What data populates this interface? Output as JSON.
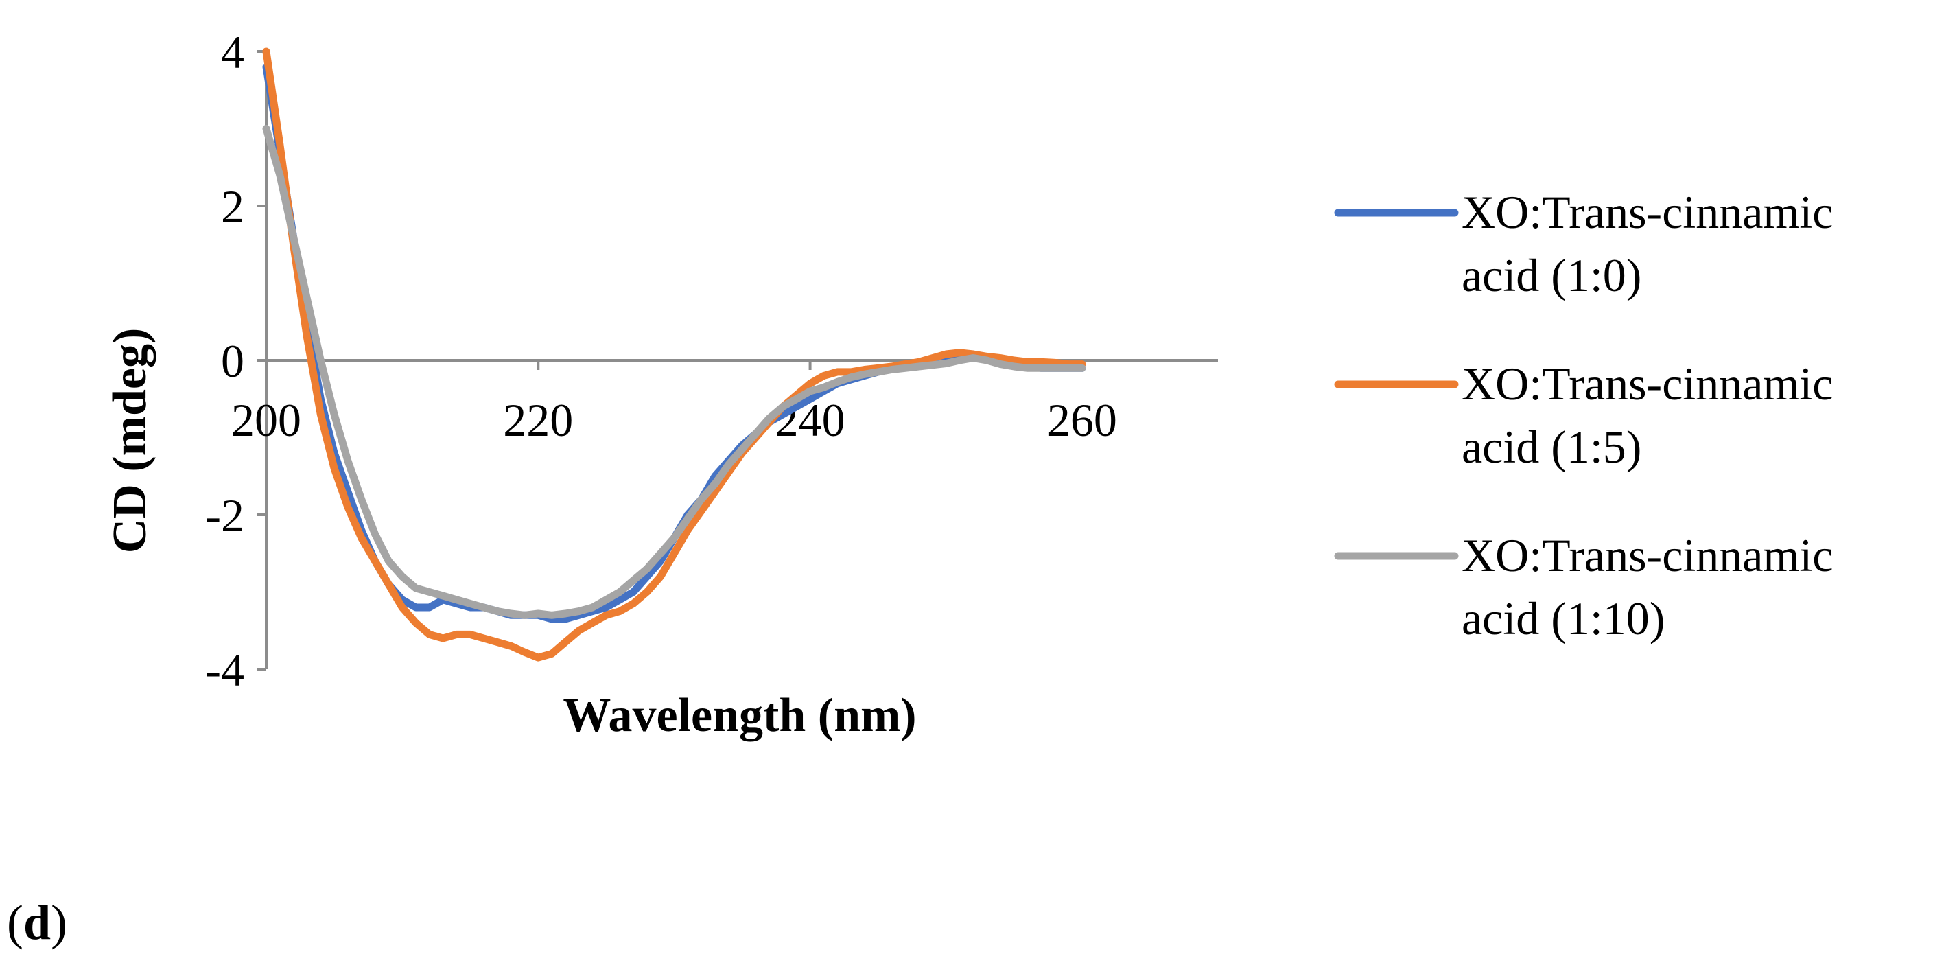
{
  "panel_label": {
    "open": "(",
    "letter": "d",
    "close": ")"
  },
  "chart_data": {
    "type": "line",
    "title": "",
    "xlabel": "Wavelength (nm)",
    "ylabel": "CD (mdeg)",
    "xlim": [
      200,
      270
    ],
    "ylim": [
      -4,
      4
    ],
    "x_ticks": [
      200,
      220,
      240,
      260
    ],
    "y_ticks": [
      4,
      2,
      0,
      -2,
      -4
    ],
    "x_tick_labels": [
      "200",
      "220",
      "240",
      "260"
    ],
    "y_tick_labels": [
      "4",
      "2",
      "0",
      "-2",
      "-4"
    ],
    "legend_position": "right",
    "series": [
      {
        "name": "XO:Trans-cinnamic acid (1:0)",
        "legend_lines": [
          "XO:Trans-cinnamic",
          "acid (1:0)"
        ],
        "color": "#4472C4",
        "points": [
          [
            200,
            3.8
          ],
          [
            201,
            2.7
          ],
          [
            202,
            1.6
          ],
          [
            203,
            0.5
          ],
          [
            204,
            -0.5
          ],
          [
            205,
            -1.2
          ],
          [
            206,
            -1.7
          ],
          [
            207,
            -2.2
          ],
          [
            208,
            -2.6
          ],
          [
            209,
            -2.9
          ],
          [
            210,
            -3.1
          ],
          [
            211,
            -3.2
          ],
          [
            212,
            -3.2
          ],
          [
            213,
            -3.1
          ],
          [
            214,
            -3.15
          ],
          [
            215,
            -3.2
          ],
          [
            216,
            -3.2
          ],
          [
            217,
            -3.25
          ],
          [
            218,
            -3.3
          ],
          [
            219,
            -3.3
          ],
          [
            220,
            -3.3
          ],
          [
            221,
            -3.35
          ],
          [
            222,
            -3.35
          ],
          [
            223,
            -3.3
          ],
          [
            224,
            -3.25
          ],
          [
            225,
            -3.2
          ],
          [
            226,
            -3.1
          ],
          [
            227,
            -3.0
          ],
          [
            228,
            -2.8
          ],
          [
            229,
            -2.6
          ],
          [
            230,
            -2.3
          ],
          [
            231,
            -2.0
          ],
          [
            232,
            -1.8
          ],
          [
            233,
            -1.5
          ],
          [
            234,
            -1.3
          ],
          [
            235,
            -1.1
          ],
          [
            236,
            -0.95
          ],
          [
            237,
            -0.8
          ],
          [
            238,
            -0.7
          ],
          [
            239,
            -0.6
          ],
          [
            240,
            -0.5
          ],
          [
            241,
            -0.4
          ],
          [
            242,
            -0.3
          ],
          [
            243,
            -0.25
          ],
          [
            244,
            -0.2
          ],
          [
            245,
            -0.15
          ],
          [
            246,
            -0.1
          ],
          [
            247,
            -0.08
          ],
          [
            248,
            -0.05
          ],
          [
            249,
            -0.03
          ],
          [
            250,
            0.0
          ],
          [
            251,
            0.02
          ],
          [
            252,
            0.03
          ],
          [
            253,
            0.03
          ],
          [
            254,
            0.0
          ],
          [
            255,
            -0.05
          ],
          [
            256,
            -0.08
          ],
          [
            257,
            -0.1
          ],
          [
            258,
            -0.1
          ],
          [
            259,
            -0.1
          ],
          [
            260,
            -0.1
          ]
        ]
      },
      {
        "name": "XO:Trans-cinnamic acid (1:5)",
        "legend_lines": [
          "XO:Trans-cinnamic",
          "acid (1:5)"
        ],
        "color": "#ED7D31",
        "points": [
          [
            200,
            4.0
          ],
          [
            201,
            2.8
          ],
          [
            202,
            1.5
          ],
          [
            203,
            0.3
          ],
          [
            204,
            -0.7
          ],
          [
            205,
            -1.4
          ],
          [
            206,
            -1.9
          ],
          [
            207,
            -2.3
          ],
          [
            208,
            -2.6
          ],
          [
            209,
            -2.9
          ],
          [
            210,
            -3.2
          ],
          [
            211,
            -3.4
          ],
          [
            212,
            -3.55
          ],
          [
            213,
            -3.6
          ],
          [
            214,
            -3.55
          ],
          [
            215,
            -3.55
          ],
          [
            216,
            -3.6
          ],
          [
            217,
            -3.65
          ],
          [
            218,
            -3.7
          ],
          [
            219,
            -3.78
          ],
          [
            220,
            -3.85
          ],
          [
            221,
            -3.8
          ],
          [
            222,
            -3.65
          ],
          [
            223,
            -3.5
          ],
          [
            224,
            -3.4
          ],
          [
            225,
            -3.3
          ],
          [
            226,
            -3.25
          ],
          [
            227,
            -3.15
          ],
          [
            228,
            -3.0
          ],
          [
            229,
            -2.8
          ],
          [
            230,
            -2.5
          ],
          [
            231,
            -2.2
          ],
          [
            232,
            -1.95
          ],
          [
            233,
            -1.7
          ],
          [
            234,
            -1.45
          ],
          [
            235,
            -1.2
          ],
          [
            236,
            -1.0
          ],
          [
            237,
            -0.8
          ],
          [
            238,
            -0.6
          ],
          [
            239,
            -0.45
          ],
          [
            240,
            -0.3
          ],
          [
            241,
            -0.2
          ],
          [
            242,
            -0.15
          ],
          [
            243,
            -0.15
          ],
          [
            244,
            -0.12
          ],
          [
            245,
            -0.1
          ],
          [
            246,
            -0.08
          ],
          [
            247,
            -0.05
          ],
          [
            248,
            -0.02
          ],
          [
            249,
            0.03
          ],
          [
            250,
            0.08
          ],
          [
            251,
            0.1
          ],
          [
            252,
            0.08
          ],
          [
            253,
            0.05
          ],
          [
            254,
            0.03
          ],
          [
            255,
            0.0
          ],
          [
            256,
            -0.02
          ],
          [
            257,
            -0.02
          ],
          [
            258,
            -0.03
          ],
          [
            259,
            -0.05
          ],
          [
            260,
            -0.05
          ]
        ]
      },
      {
        "name": "XO:Trans-cinnamic acid (1:10)",
        "legend_lines": [
          "XO:Trans-cinnamic",
          "acid (1:10)"
        ],
        "color": "#A5A5A5",
        "points": [
          [
            200,
            3.0
          ],
          [
            201,
            2.4
          ],
          [
            202,
            1.6
          ],
          [
            203,
            0.8
          ],
          [
            204,
            0.0
          ],
          [
            205,
            -0.7
          ],
          [
            206,
            -1.3
          ],
          [
            207,
            -1.8
          ],
          [
            208,
            -2.25
          ],
          [
            209,
            -2.6
          ],
          [
            210,
            -2.8
          ],
          [
            211,
            -2.95
          ],
          [
            212,
            -3.0
          ],
          [
            213,
            -3.05
          ],
          [
            214,
            -3.1
          ],
          [
            215,
            -3.15
          ],
          [
            216,
            -3.2
          ],
          [
            217,
            -3.25
          ],
          [
            218,
            -3.28
          ],
          [
            219,
            -3.3
          ],
          [
            220,
            -3.28
          ],
          [
            221,
            -3.3
          ],
          [
            222,
            -3.28
          ],
          [
            223,
            -3.25
          ],
          [
            224,
            -3.2
          ],
          [
            225,
            -3.1
          ],
          [
            226,
            -3.0
          ],
          [
            227,
            -2.85
          ],
          [
            228,
            -2.7
          ],
          [
            229,
            -2.5
          ],
          [
            230,
            -2.3
          ],
          [
            231,
            -2.05
          ],
          [
            232,
            -1.8
          ],
          [
            233,
            -1.6
          ],
          [
            234,
            -1.35
          ],
          [
            235,
            -1.15
          ],
          [
            236,
            -0.95
          ],
          [
            237,
            -0.75
          ],
          [
            238,
            -0.6
          ],
          [
            239,
            -0.5
          ],
          [
            240,
            -0.4
          ],
          [
            241,
            -0.35
          ],
          [
            242,
            -0.28
          ],
          [
            243,
            -0.22
          ],
          [
            244,
            -0.18
          ],
          [
            245,
            -0.15
          ],
          [
            246,
            -0.12
          ],
          [
            247,
            -0.1
          ],
          [
            248,
            -0.08
          ],
          [
            249,
            -0.06
          ],
          [
            250,
            -0.04
          ],
          [
            251,
            0.0
          ],
          [
            252,
            0.03
          ],
          [
            253,
            0.0
          ],
          [
            254,
            -0.05
          ],
          [
            255,
            -0.08
          ],
          [
            256,
            -0.1
          ],
          [
            257,
            -0.1
          ],
          [
            258,
            -0.1
          ],
          [
            259,
            -0.1
          ],
          [
            260,
            -0.1
          ]
        ]
      }
    ]
  }
}
